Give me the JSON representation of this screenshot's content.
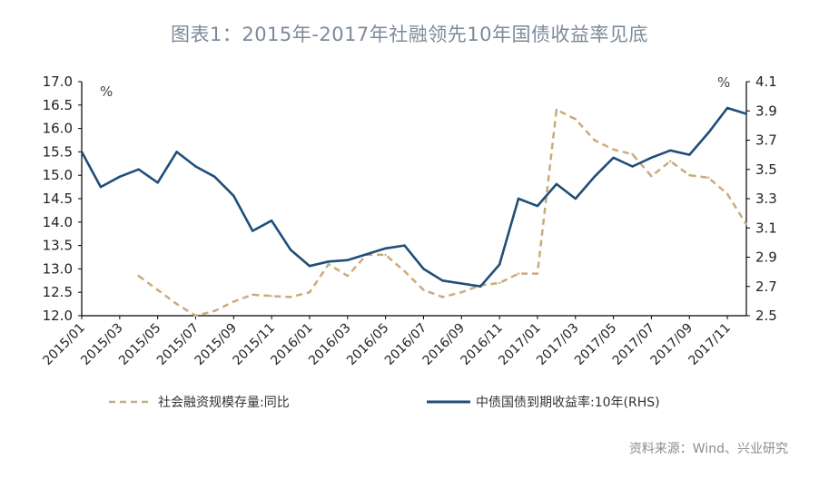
{
  "title": "图表1：2015年-2017年社融领先10年国债收益率见底",
  "source": "资料来源：Wind、兴业研究",
  "chart_data": {
    "type": "line",
    "left_unit": "%",
    "right_unit": "%",
    "y_left": {
      "min": 12.0,
      "max": 17.0,
      "ticks": [
        "12.0",
        "12.5",
        "13.0",
        "13.5",
        "14.0",
        "14.5",
        "15.0",
        "15.5",
        "16.0",
        "16.5",
        "17.0"
      ]
    },
    "y_right": {
      "min": 2.5,
      "max": 4.1,
      "ticks": [
        "2.5",
        "2.7",
        "2.9",
        "3.1",
        "3.3",
        "3.5",
        "3.7",
        "3.9",
        "4.1"
      ]
    },
    "x_range": [
      "2015/01",
      "2017/12"
    ],
    "x_ticks": [
      "2015/01",
      "2015/03",
      "2015/05",
      "2015/07",
      "2015/09",
      "2015/11",
      "2016/01",
      "2016/03",
      "2016/05",
      "2016/07",
      "2016/09",
      "2016/11",
      "2017/01",
      "2017/03",
      "2017/05",
      "2017/07",
      "2017/09",
      "2017/11"
    ],
    "series": [
      {
        "name": "社会融资规模存量:同比",
        "axis": "left",
        "color": "#c9ab7c",
        "style": "dashed",
        "points": [
          [
            "2015/04",
            12.85
          ],
          [
            "2015/05",
            12.55
          ],
          [
            "2015/06",
            12.25
          ],
          [
            "2015/07",
            12.0
          ],
          [
            "2015/08",
            12.1
          ],
          [
            "2015/09",
            12.3
          ],
          [
            "2015/10",
            12.45
          ],
          [
            "2015/11",
            12.42
          ],
          [
            "2015/12",
            12.4
          ],
          [
            "2016/01",
            12.5
          ],
          [
            "2016/02",
            13.1
          ],
          [
            "2016/03",
            12.85
          ],
          [
            "2016/04",
            13.3
          ],
          [
            "2016/05",
            13.3
          ],
          [
            "2016/06",
            12.95
          ],
          [
            "2016/07",
            12.55
          ],
          [
            "2016/08",
            12.4
          ],
          [
            "2016/09",
            12.5
          ],
          [
            "2016/10",
            12.65
          ],
          [
            "2016/11",
            12.7
          ],
          [
            "2016/12",
            12.9
          ],
          [
            "2017/01",
            12.9
          ],
          [
            "2017/02",
            16.4
          ],
          [
            "2017/03",
            16.2
          ],
          [
            "2017/04",
            15.75
          ],
          [
            "2017/05",
            15.55
          ],
          [
            "2017/06",
            15.45
          ],
          [
            "2017/07",
            14.98
          ],
          [
            "2017/08",
            15.3
          ],
          [
            "2017/09",
            15.0
          ],
          [
            "2017/10",
            14.95
          ],
          [
            "2017/11",
            14.6
          ],
          [
            "2017/12",
            13.95
          ]
        ]
      },
      {
        "name": "中债国债到期收益率:10年(RHS)",
        "axis": "right",
        "color": "#1f4e79",
        "style": "solid",
        "points": [
          [
            "2015/01",
            3.62
          ],
          [
            "2015/02",
            3.38
          ],
          [
            "2015/03",
            3.45
          ],
          [
            "2015/04",
            3.5
          ],
          [
            "2015/05",
            3.41
          ],
          [
            "2015/06",
            3.62
          ],
          [
            "2015/07",
            3.52
          ],
          [
            "2015/08",
            3.45
          ],
          [
            "2015/09",
            3.32
          ],
          [
            "2015/10",
            3.08
          ],
          [
            "2015/11",
            3.15
          ],
          [
            "2015/12",
            2.95
          ],
          [
            "2016/01",
            2.84
          ],
          [
            "2016/02",
            2.87
          ],
          [
            "2016/03",
            2.88
          ],
          [
            "2016/04",
            2.92
          ],
          [
            "2016/05",
            2.96
          ],
          [
            "2016/06",
            2.98
          ],
          [
            "2016/07",
            2.82
          ],
          [
            "2016/08",
            2.74
          ],
          [
            "2016/09",
            2.72
          ],
          [
            "2016/10",
            2.7
          ],
          [
            "2016/11",
            2.85
          ],
          [
            "2016/12",
            3.3
          ],
          [
            "2017/01",
            3.25
          ],
          [
            "2017/02",
            3.4
          ],
          [
            "2017/03",
            3.3
          ],
          [
            "2017/04",
            3.45
          ],
          [
            "2017/05",
            3.58
          ],
          [
            "2017/06",
            3.52
          ],
          [
            "2017/07",
            3.58
          ],
          [
            "2017/08",
            3.63
          ],
          [
            "2017/09",
            3.6
          ],
          [
            "2017/10",
            3.75
          ],
          [
            "2017/11",
            3.92
          ],
          [
            "2017/12",
            3.88
          ]
        ]
      }
    ],
    "legend_position": "bottom"
  }
}
